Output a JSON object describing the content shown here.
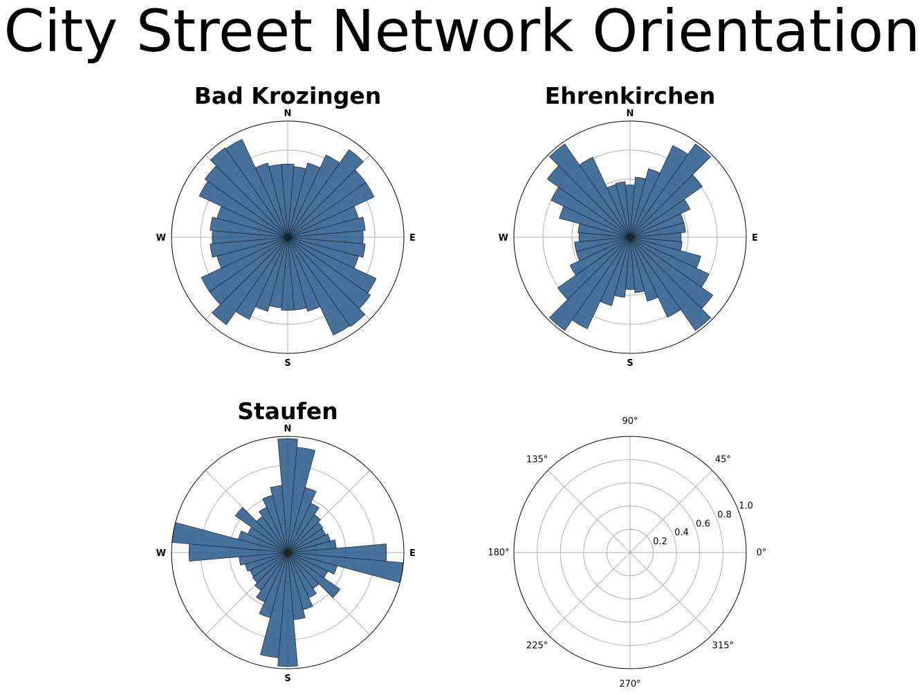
{
  "title": "City Street Network Orientation",
  "colors": {
    "bar_fill": "#33628f",
    "bar_edge": "#1a2530",
    "grid": "#b0b0b0",
    "frame": "#000000"
  },
  "chart_data": [
    {
      "type": "polar-bar",
      "title": "Bad Krozingen",
      "direction_labels": [
        "N",
        "E",
        "S",
        "W"
      ],
      "bin_width_deg": 10,
      "bearing_bins_deg": [
        0,
        10,
        20,
        30,
        40,
        50,
        60,
        70,
        80,
        90,
        100,
        110,
        120,
        130,
        140,
        150,
        160,
        170,
        180,
        190,
        200,
        210,
        220,
        230,
        240,
        250,
        260,
        270,
        280,
        290,
        300,
        310,
        320,
        330,
        340,
        350
      ],
      "values": [
        0.63,
        0.61,
        0.66,
        0.78,
        0.92,
        0.82,
        0.82,
        0.63,
        0.67,
        0.65,
        0.67,
        0.63,
        0.84,
        0.87,
        0.94,
        0.93,
        0.66,
        0.63,
        0.63,
        0.61,
        0.66,
        0.78,
        0.92,
        0.82,
        0.82,
        0.63,
        0.67,
        0.65,
        0.67,
        0.63,
        0.84,
        0.87,
        0.94,
        0.93,
        0.66,
        0.63
      ],
      "rlim": [
        0,
        1
      ],
      "grid_rings": [
        0.25,
        0.5,
        0.75
      ]
    },
    {
      "type": "polar-bar",
      "title": "Ehrenkirchen",
      "direction_labels": [
        "N",
        "E",
        "S",
        "W"
      ],
      "bin_width_deg": 10,
      "bearing_bins_deg": [
        0,
        10,
        20,
        30,
        40,
        50,
        60,
        70,
        80,
        90,
        100,
        110,
        120,
        130,
        140,
        150,
        160,
        170,
        180,
        190,
        200,
        210,
        220,
        230,
        240,
        250,
        260,
        270,
        280,
        290,
        300,
        310,
        320,
        330,
        340,
        350
      ],
      "values": [
        0.45,
        0.52,
        0.61,
        0.87,
        0.98,
        0.76,
        0.57,
        0.48,
        0.48,
        0.44,
        0.45,
        0.63,
        0.75,
        0.87,
        0.98,
        0.76,
        0.57,
        0.48,
        0.45,
        0.52,
        0.61,
        0.87,
        0.98,
        0.76,
        0.57,
        0.48,
        0.48,
        0.44,
        0.45,
        0.63,
        0.75,
        0.87,
        0.98,
        0.76,
        0.47,
        0.48
      ],
      "rlim": [
        0,
        1
      ],
      "grid_rings": [
        0.25,
        0.5,
        0.75
      ]
    },
    {
      "type": "polar-bar",
      "title": "Staufen",
      "direction_labels": [
        "N",
        "E",
        "S",
        "W"
      ],
      "bin_width_deg": 10,
      "bearing_bins_deg": [
        0,
        10,
        20,
        30,
        40,
        50,
        60,
        70,
        80,
        90,
        100,
        110,
        120,
        130,
        140,
        150,
        160,
        170,
        180,
        190,
        200,
        210,
        220,
        230,
        240,
        250,
        260,
        270,
        280,
        290,
        300,
        310,
        320,
        330,
        340,
        350
      ],
      "values": [
        0.98,
        0.91,
        0.58,
        0.47,
        0.4,
        0.37,
        0.36,
        0.38,
        0.42,
        0.85,
        1.0,
        0.44,
        0.38,
        0.55,
        0.38,
        0.43,
        0.51,
        0.58,
        0.98,
        0.91,
        0.58,
        0.47,
        0.4,
        0.37,
        0.36,
        0.38,
        0.42,
        0.85,
        1.0,
        0.44,
        0.38,
        0.55,
        0.38,
        0.43,
        0.51,
        0.58
      ],
      "rlim": [
        0,
        1
      ],
      "grid_rings": [
        0.25,
        0.5,
        0.75
      ]
    },
    {
      "type": "polar-empty",
      "angle_labels": [
        "0°",
        "45°",
        "90°",
        "135°",
        "180°",
        "225°",
        "270°",
        "315°"
      ],
      "angle_values_deg": [
        0,
        45,
        90,
        135,
        180,
        225,
        270,
        315
      ],
      "radial_labels": [
        "0.2",
        "0.4",
        "0.6",
        "0.8",
        "1.0"
      ],
      "radial_values": [
        0.2,
        0.4,
        0.6,
        0.8,
        1.0
      ],
      "radial_label_angle_deg": 22.5,
      "rlim": [
        0,
        1
      ]
    }
  ]
}
